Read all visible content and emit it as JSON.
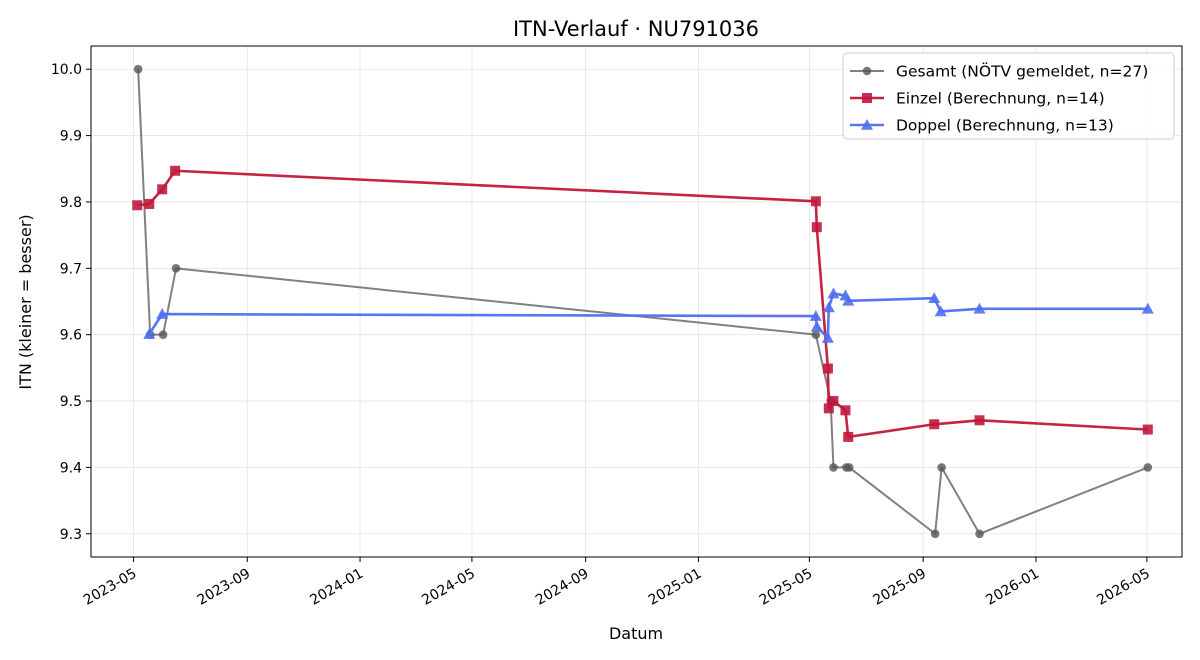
{
  "chart_data": {
    "type": "line",
    "title": "ITN-Verlauf · NU791036",
    "xlabel": "Datum",
    "ylabel": "ITN  (kleiner = besser)",
    "xlim": [
      "2023-03-16",
      "2026-06-08"
    ],
    "ylim": [
      9.265,
      10.035
    ],
    "x_ticks": [
      "2023-05-01",
      "2023-09-01",
      "2024-01-01",
      "2024-05-01",
      "2024-09-01",
      "2025-01-01",
      "2025-05-01",
      "2025-09-01",
      "2026-01-01",
      "2026-05-01"
    ],
    "x_tick_labels": [
      "2023-05",
      "2023-09",
      "2024-01",
      "2024-05",
      "2024-09",
      "2025-01",
      "2025-05",
      "2025-09",
      "2026-01",
      "2026-05"
    ],
    "y_ticks": [
      9.3,
      9.4,
      9.5,
      9.6,
      9.7,
      9.8,
      9.9,
      10.0
    ],
    "y_tick_labels": [
      "9.3",
      "9.4",
      "9.5",
      "9.6",
      "9.7",
      "9.8",
      "9.9",
      "10.0"
    ],
    "grid": true,
    "legend_position": "top-right",
    "series": [
      {
        "name": "Gesamt (NÖTV gemeldet, n=27)",
        "color": "#555555",
        "marker": "circle",
        "x": [
          "2023-05-06",
          "2023-05-19",
          "2023-06-02",
          "2023-06-16",
          "2025-05-08",
          "2025-05-24",
          "2025-05-27",
          "2025-06-10",
          "2025-06-13",
          "2025-09-14",
          "2025-09-21",
          "2025-11-01",
          "2026-05-02"
        ],
        "values": [
          10.0,
          9.6,
          9.6,
          9.7,
          9.6,
          9.5,
          9.4,
          9.4,
          9.4,
          9.3,
          9.4,
          9.3,
          9.4
        ]
      },
      {
        "name": "Einzel (Berechnung, n=14)",
        "color": "#c0183a",
        "marker": "square",
        "x": [
          "2023-05-05",
          "2023-05-18",
          "2023-06-01",
          "2023-06-15",
          "2025-05-08",
          "2025-05-09",
          "2025-05-21",
          "2025-05-22",
          "2025-05-27",
          "2025-06-09",
          "2025-06-12",
          "2025-09-13",
          "2025-11-01",
          "2026-05-02"
        ],
        "values": [
          9.795,
          9.797,
          9.819,
          9.847,
          9.801,
          9.762,
          9.549,
          9.489,
          9.5,
          9.486,
          9.446,
          9.465,
          9.471,
          9.457
        ]
      },
      {
        "name": "Doppel (Berechnung, n=13)",
        "color": "#4f6ff0",
        "marker": "triangle",
        "x": [
          "2023-05-18",
          "2023-06-01",
          "2025-05-08",
          "2025-05-09",
          "2025-05-21",
          "2025-05-22",
          "2025-05-27",
          "2025-06-09",
          "2025-06-12",
          "2025-09-13",
          "2025-09-20",
          "2025-11-01",
          "2026-05-02"
        ],
        "values": [
          9.601,
          9.631,
          9.628,
          9.612,
          9.595,
          9.641,
          9.662,
          9.659,
          9.651,
          9.655,
          9.635,
          9.639,
          9.639
        ]
      }
    ]
  }
}
